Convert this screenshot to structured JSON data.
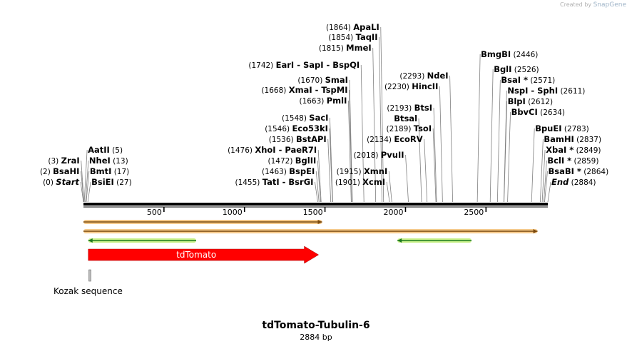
{
  "credit": {
    "prefix": "Created by",
    "brand": "SnapGene"
  },
  "plasmid": {
    "name": "tdTomato-Tubulin-6",
    "length_label": "2884 bp"
  },
  "sequence_length": 2884,
  "ruler": {
    "ticks": [
      500,
      1000,
      1500,
      2000,
      2500
    ]
  },
  "sites": [
    {
      "pos": 0,
      "label": "(0)",
      "name": "Start",
      "italic": true,
      "side": "left"
    },
    {
      "pos": 2,
      "label": "(2)",
      "name": "BsaHI",
      "side": "left"
    },
    {
      "pos": 3,
      "label": "(3)",
      "name": "ZraI",
      "side": "left"
    },
    {
      "pos": 5,
      "label": "(5)",
      "name": "AatII",
      "side": "right"
    },
    {
      "pos": 13,
      "label": "(13)",
      "name": "NheI",
      "side": "right"
    },
    {
      "pos": 17,
      "label": "(17)",
      "name": "BmtI",
      "side": "right"
    },
    {
      "pos": 27,
      "label": "(27)",
      "name": "BsiEI",
      "side": "right"
    },
    {
      "pos": 1455,
      "label": "(1455)",
      "name": "TatI  -  BsrGI",
      "side": "left"
    },
    {
      "pos": 1463,
      "label": "(1463)",
      "name": "BspEI",
      "side": "left"
    },
    {
      "pos": 1472,
      "label": "(1472)",
      "name": "BglII",
      "side": "left"
    },
    {
      "pos": 1476,
      "label": "(1476)",
      "name": "XhoI  -  PaeR7I",
      "side": "left"
    },
    {
      "pos": 1536,
      "label": "(1536)",
      "name": "BstAPI",
      "side": "left"
    },
    {
      "pos": 1546,
      "label": "(1546)",
      "name": "Eco53kI",
      "side": "left"
    },
    {
      "pos": 1548,
      "label": "(1548)",
      "name": "SacI",
      "side": "left"
    },
    {
      "pos": 1663,
      "label": "(1663)",
      "name": "PmlI",
      "side": "left"
    },
    {
      "pos": 1668,
      "label": "(1668)",
      "name": "XmaI  -  TspMI",
      "side": "left"
    },
    {
      "pos": 1670,
      "label": "(1670)",
      "name": "SmaI",
      "side": "left"
    },
    {
      "pos": 1742,
      "label": "(1742)",
      "name": "EarI  -  SapI  -  BspQI",
      "side": "left"
    },
    {
      "pos": 1815,
      "label": "(1815)",
      "name": "MmeI",
      "side": "left"
    },
    {
      "pos": 1854,
      "label": "(1854)",
      "name": "TaqII",
      "side": "left"
    },
    {
      "pos": 1864,
      "label": "(1864)",
      "name": "ApaLI",
      "side": "left"
    },
    {
      "pos": 1901,
      "label": "(1901)",
      "name": "XcmI",
      "side": "left"
    },
    {
      "pos": 1915,
      "label": "(1915)",
      "name": "XmnI",
      "side": "left"
    },
    {
      "pos": 2018,
      "label": "(2018)",
      "name": "PvuII",
      "side": "left"
    },
    {
      "pos": 2134,
      "label": "(2134)",
      "name": "EcoRV",
      "side": "left"
    },
    {
      "pos": 2189,
      "label": "(2189)",
      "name": "TsoI",
      "side": "left"
    },
    {
      "pos": 2193,
      "label": "(2193)",
      "name": "BtsI",
      "side": "left"
    },
    {
      "pos": 2230,
      "label": "(2230)",
      "name": "HincII",
      "side": "left"
    },
    {
      "pos": 2293,
      "label": "(2293)",
      "name": "NdeI",
      "side": "left"
    },
    {
      "pos": 2446,
      "label": "(2446)",
      "name": "BmgBI",
      "side": "right"
    },
    {
      "pos": 2526,
      "label": "(2526)",
      "name": "BglI",
      "side": "right"
    },
    {
      "pos": 2571,
      "label": "(2571)",
      "name": "BsaI *",
      "side": "right"
    },
    {
      "pos": 2611,
      "label": "(2611)",
      "name": "NspI  -  SphI",
      "side": "right"
    },
    {
      "pos": 2612,
      "label": "(2612)",
      "name": "BlpI",
      "side": "right"
    },
    {
      "pos": 2634,
      "label": "(2634)",
      "name": "BbvCI",
      "side": "right"
    },
    {
      "pos": 2783,
      "label": "(2783)",
      "name": "BpuEI",
      "side": "right"
    },
    {
      "pos": 2837,
      "label": "(2837)",
      "name": "BamHI",
      "side": "right"
    },
    {
      "pos": 2849,
      "label": "(2849)",
      "name": "XbaI *",
      "side": "right"
    },
    {
      "pos": 2859,
      "label": "(2859)",
      "name": "BclI *",
      "side": "right"
    },
    {
      "pos": 2864,
      "label": "(2864)",
      "name": "BsaBI *",
      "side": "right"
    },
    {
      "pos": 2884,
      "label": "(2884)",
      "name": "End",
      "italic": true,
      "side": "right"
    },
    {
      "pos": 2000,
      "label": "",
      "name": "",
      "side": "left"
    },
    {
      "pos": 2100,
      "label": "",
      "name": "Btsal",
      "side": "left"
    }
  ],
  "tracks": [
    {
      "start": 0,
      "end": 1482,
      "direction": "forward",
      "style": "orange"
    },
    {
      "start": 0,
      "end": 2820,
      "direction": "forward",
      "style": "orange"
    },
    {
      "start": 30,
      "end": 700,
      "direction": "reverse",
      "style": "green"
    },
    {
      "start": 1950,
      "end": 2410,
      "direction": "reverse",
      "style": "green"
    }
  ],
  "features": [
    {
      "name": "tdTomato",
      "start": 30,
      "end": 1460,
      "direction": "forward",
      "color": "#ff0000",
      "text_color": "#ffffff"
    },
    {
      "name": "Kozak sequence",
      "start": 20,
      "end": 32,
      "direction": "none",
      "color": "#bbbbbb",
      "text_color": "#000000"
    }
  ]
}
